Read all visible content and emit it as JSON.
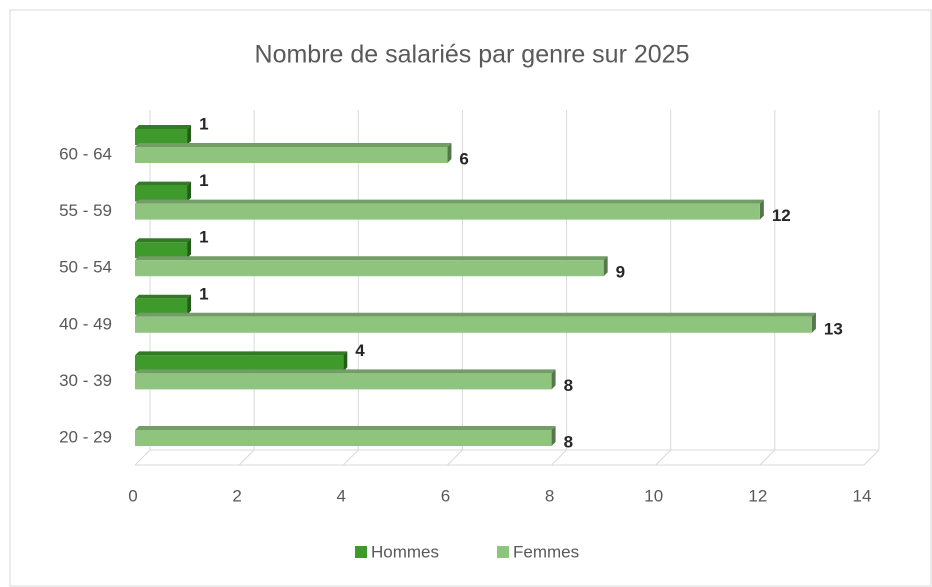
{
  "chart_data": {
    "type": "bar",
    "orientation": "horizontal",
    "title": "Nombre de salariés par genre sur 2025",
    "categories": [
      "20 - 29",
      "30 - 39",
      "40 - 49",
      "50 - 54",
      "55 - 59",
      "60 - 64"
    ],
    "series": [
      {
        "name": "Hommes",
        "color": "#3d9a2b",
        "values": [
          null,
          4,
          1,
          1,
          1,
          1
        ]
      },
      {
        "name": "Femmes",
        "color": "#8fc47f",
        "values": [
          8,
          8,
          13,
          9,
          12,
          6
        ]
      }
    ],
    "xlim": [
      0,
      14
    ],
    "xticks": [
      0,
      2,
      4,
      6,
      8,
      10,
      12,
      14
    ],
    "grid": true,
    "legend": "bottom"
  }
}
